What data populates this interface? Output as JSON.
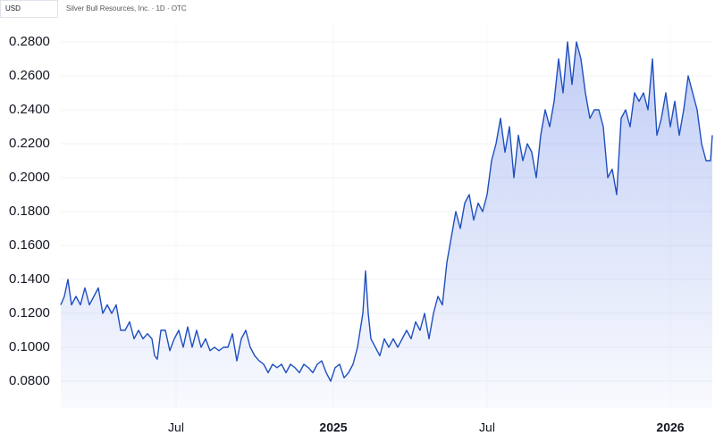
{
  "chart_data": {
    "type": "area",
    "currency": "USD",
    "title": "Silver Bull Resources, Inc. · 1D · OTC",
    "color": "#1f4fbf",
    "grid": true,
    "x": [
      0,
      4,
      8,
      12,
      17,
      22,
      27,
      32,
      37,
      42,
      47,
      52,
      57,
      62,
      67,
      72,
      77,
      82,
      87,
      92,
      97,
      102,
      105,
      108,
      112,
      117,
      122,
      127,
      132,
      137,
      142,
      147,
      152,
      157,
      162,
      167,
      172,
      177,
      182,
      187,
      192,
      197,
      202,
      207,
      212,
      217,
      222,
      227,
      232,
      237,
      242,
      247,
      252,
      257,
      262,
      267,
      272,
      277,
      282,
      287,
      292,
      297,
      302,
      307,
      312,
      317,
      322,
      327,
      332,
      335,
      338,
      341,
      344,
      347,
      352,
      357,
      362,
      367,
      372,
      377,
      382,
      387,
      392,
      397,
      402,
      407,
      412,
      417,
      422,
      427,
      432,
      437,
      442,
      447,
      452,
      457,
      462,
      467,
      472,
      477,
      482,
      487,
      492,
      497,
      502,
      507,
      512,
      517,
      522,
      527,
      532,
      537,
      542,
      547,
      552,
      557,
      562,
      567,
      572,
      577,
      582,
      587,
      592,
      597,
      602,
      607,
      612,
      617,
      622,
      627,
      632,
      637,
      642,
      647,
      652,
      657,
      662,
      667,
      672,
      677,
      682,
      687,
      692,
      697,
      702,
      707,
      712,
      717,
      722,
      727,
      729
    ],
    "values": [
      0.125,
      0.13,
      0.14,
      0.125,
      0.13,
      0.125,
      0.135,
      0.125,
      0.13,
      0.135,
      0.12,
      0.125,
      0.12,
      0.125,
      0.11,
      0.11,
      0.115,
      0.105,
      0.11,
      0.105,
      0.108,
      0.105,
      0.095,
      0.093,
      0.11,
      0.11,
      0.098,
      0.105,
      0.11,
      0.1,
      0.112,
      0.1,
      0.11,
      0.1,
      0.105,
      0.098,
      0.1,
      0.098,
      0.1,
      0.1,
      0.108,
      0.092,
      0.105,
      0.11,
      0.1,
      0.095,
      0.092,
      0.09,
      0.085,
      0.09,
      0.088,
      0.09,
      0.085,
      0.09,
      0.088,
      0.085,
      0.09,
      0.088,
      0.085,
      0.09,
      0.092,
      0.085,
      0.08,
      0.088,
      0.09,
      0.082,
      0.085,
      0.09,
      0.1,
      0.11,
      0.12,
      0.145,
      0.12,
      0.105,
      0.1,
      0.095,
      0.105,
      0.1,
      0.105,
      0.1,
      0.105,
      0.11,
      0.105,
      0.115,
      0.11,
      0.12,
      0.105,
      0.12,
      0.13,
      0.125,
      0.15,
      0.165,
      0.18,
      0.17,
      0.185,
      0.19,
      0.175,
      0.185,
      0.18,
      0.19,
      0.21,
      0.22,
      0.235,
      0.215,
      0.23,
      0.2,
      0.225,
      0.21,
      0.22,
      0.215,
      0.2,
      0.225,
      0.24,
      0.23,
      0.245,
      0.27,
      0.25,
      0.28,
      0.255,
      0.28,
      0.27,
      0.25,
      0.235,
      0.24,
      0.24,
      0.23,
      0.2,
      0.205,
      0.19,
      0.235,
      0.24,
      0.23,
      0.25,
      0.245,
      0.25,
      0.24,
      0.27,
      0.225,
      0.235,
      0.25,
      0.23,
      0.245,
      0.225,
      0.24,
      0.26,
      0.25,
      0.24,
      0.22,
      0.21,
      0.21,
      0.225
    ],
    "xlim": [
      0,
      729
    ],
    "xticks": [
      {
        "value": 129,
        "label": "Jul"
      },
      {
        "value": 305,
        "label": "2025"
      },
      {
        "value": 477,
        "label": "Jul"
      },
      {
        "value": 682,
        "label": "2026"
      }
    ],
    "ylim": [
      0.064,
      0.29
    ],
    "yticks": [
      {
        "value": 0.08,
        "label": "0.0800"
      },
      {
        "value": 0.1,
        "label": "0.1000"
      },
      {
        "value": 0.12,
        "label": "0.1200"
      },
      {
        "value": 0.14,
        "label": "0.1400"
      },
      {
        "value": 0.16,
        "label": "0.1600"
      },
      {
        "value": 0.18,
        "label": "0.1800"
      },
      {
        "value": 0.2,
        "label": "0.2000"
      },
      {
        "value": 0.22,
        "label": "0.2200"
      },
      {
        "value": 0.24,
        "label": "0.2400"
      },
      {
        "value": 0.26,
        "label": "0.2600"
      },
      {
        "value": 0.28,
        "label": "0.2800"
      }
    ]
  }
}
